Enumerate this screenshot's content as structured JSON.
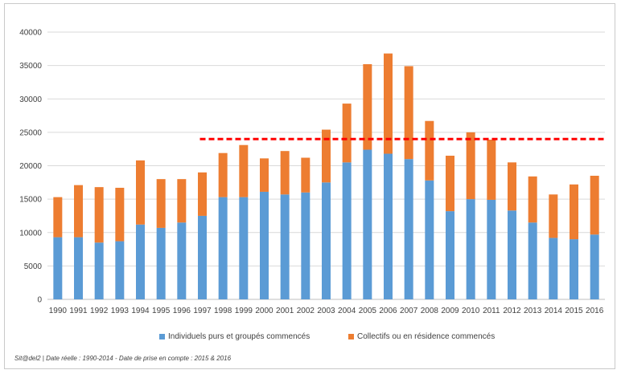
{
  "chart_data": {
    "type": "bar",
    "stacked": true,
    "title": "",
    "xlabel": "",
    "ylabel": "",
    "ylim": [
      0,
      40000
    ],
    "yticks": [
      0,
      5000,
      10000,
      15000,
      20000,
      25000,
      30000,
      35000,
      40000
    ],
    "grid": true,
    "legend_position": "bottom",
    "categories": [
      "1990",
      "1991",
      "1992",
      "1993",
      "1994",
      "1995",
      "1996",
      "1997",
      "1998",
      "1999",
      "2000",
      "2001",
      "2002",
      "2003",
      "2004",
      "2005",
      "2006",
      "2007",
      "2008",
      "2009",
      "2010",
      "2011",
      "2012",
      "2013",
      "2014",
      "2015",
      "2016"
    ],
    "series": [
      {
        "name": "Individuels purs et groupés commencés",
        "color": "#5b9bd5",
        "values": [
          9300,
          9300,
          8500,
          8700,
          11200,
          10700,
          11500,
          12500,
          15300,
          15300,
          16100,
          15700,
          16000,
          17500,
          20500,
          22400,
          21800,
          21000,
          17800,
          13200,
          15000,
          14900,
          13300,
          11500,
          9200,
          9000,
          9700
        ]
      },
      {
        "name": "Collectifs ou en résidence commencés",
        "color": "#ed7d31",
        "values": [
          6000,
          7800,
          8300,
          8000,
          9600,
          7300,
          6500,
          6500,
          6600,
          7800,
          5000,
          6500,
          5200,
          7900,
          8800,
          12800,
          15000,
          13900,
          8900,
          8300,
          10000,
          9000,
          7200,
          6900,
          6500,
          8200,
          8800
        ]
      }
    ],
    "reference_line": {
      "value": 24000,
      "color": "#ff0000",
      "style": "dashed"
    }
  },
  "footnote": "Sit@del2 | Date réelle : 1990-2014 - Date de prise en compte : 2015 & 2016"
}
